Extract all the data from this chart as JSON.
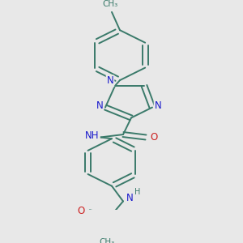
{
  "bg_color": "#e8e8e8",
  "bond_color": "#3a7a6a",
  "bond_width": 1.4,
  "atom_colors": {
    "N": "#1a1acc",
    "O": "#cc2020",
    "C": "#3a7a6a",
    "H": "#3a7a6a"
  },
  "font_size_atom": 8.5,
  "figsize": [
    3.0,
    3.0
  ],
  "dpi": 100,
  "xlim": [
    0,
    300
  ],
  "ylim": [
    0,
    300
  ]
}
